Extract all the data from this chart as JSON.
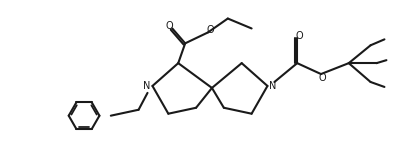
{
  "bg_color": "#ffffff",
  "line_color": "#1a1a1a",
  "line_width": 1.5,
  "figsize": [
    4.12,
    1.6
  ],
  "dpi": 100,
  "xlim": [
    0,
    4.12
  ],
  "ylim": [
    0,
    1.6
  ]
}
